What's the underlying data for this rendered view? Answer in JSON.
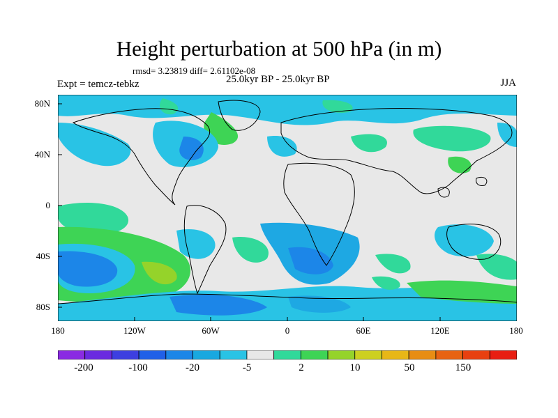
{
  "title": "Height perturbation at 500 hPa (in m)",
  "subtitle_stats": "rmsd= 3.23819 diff= 2.61102e-08",
  "subtitle_period": "25.0kyr BP - 25.0kyr BP",
  "expt_label": "Expt = temcz-tebkz",
  "season_label": "JJA",
  "y_ticks": [
    "80N",
    "40N",
    "0",
    "40S",
    "80S"
  ],
  "x_ticks": [
    "180",
    "120W",
    "60W",
    "0",
    "60E",
    "120E",
    "180"
  ],
  "legend": {
    "labels": [
      "-200",
      "-100",
      "-20",
      "-5",
      "2",
      "10",
      "50",
      "150"
    ],
    "colors": [
      "#8a2be2",
      "#6a2ae0",
      "#3d3fe0",
      "#2060e8",
      "#1c86e8",
      "#19a8e0",
      "#29c3e5",
      "#e8e8e8",
      "#31d99a",
      "#3ed455",
      "#95d32a",
      "#cdd020",
      "#e8b717",
      "#e88d14",
      "#e86312",
      "#e84010",
      "#e81e12"
    ]
  },
  "palette": {
    "ocean_fill": "#e8e8e8",
    "light_blue": "#29c3e5",
    "mid_blue": "#1ea8e3",
    "blue": "#1c86e8",
    "teal": "#31d99a",
    "green": "#3ed455",
    "yellowgreen": "#95d32a"
  }
}
